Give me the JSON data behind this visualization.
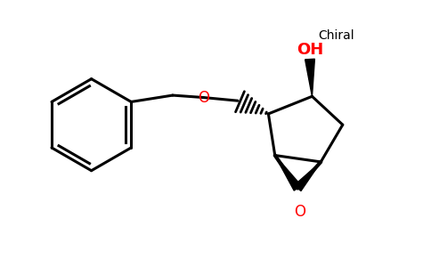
{
  "background_color": "#ffffff",
  "bond_color": "#000000",
  "oxygen_color": "#ff0000",
  "chiral_text": "Chiral",
  "oh_text": "OH",
  "o_text": "O",
  "figsize": [
    4.84,
    3.0
  ],
  "dpi": 100,
  "xlim": [
    0,
    9.68
  ],
  "ylim": [
    0,
    6.0
  ]
}
